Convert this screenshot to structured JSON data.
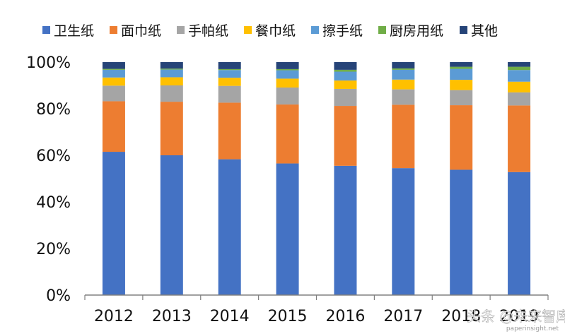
{
  "chart_data": {
    "type": "bar",
    "stacked": true,
    "normalized": true,
    "categories": [
      "2012",
      "2013",
      "2014",
      "2015",
      "2016",
      "2017",
      "2018",
      "2019"
    ],
    "series": [
      {
        "name": "卫生纸",
        "color": "#4472C4",
        "values": [
          61.5,
          60.0,
          58.3,
          56.5,
          55.5,
          54.5,
          53.8,
          52.8
        ]
      },
      {
        "name": "面巾纸",
        "color": "#ED7D31",
        "values": [
          21.7,
          23.0,
          24.3,
          25.3,
          25.7,
          27.2,
          27.7,
          28.6
        ]
      },
      {
        "name": "手帕纸",
        "color": "#A5A5A5",
        "values": [
          6.7,
          7.0,
          7.2,
          7.3,
          7.3,
          6.6,
          6.5,
          5.6
        ]
      },
      {
        "name": "餐巾纸",
        "color": "#FFC000",
        "values": [
          3.5,
          3.5,
          3.5,
          3.8,
          3.6,
          4.2,
          4.4,
          4.6
        ]
      },
      {
        "name": "擦手纸",
        "color": "#5B9BD5",
        "values": [
          3.3,
          3.3,
          3.3,
          3.6,
          3.8,
          4.2,
          4.7,
          5.0
        ]
      },
      {
        "name": "厨房用纸",
        "color": "#70AD47",
        "values": [
          0.4,
          0.4,
          0.4,
          0.5,
          0.8,
          0.6,
          0.9,
          1.4
        ]
      },
      {
        "name": "其他",
        "color": "#264478",
        "values": [
          2.9,
          2.8,
          3.0,
          3.0,
          3.3,
          2.7,
          2.0,
          2.0
        ]
      }
    ],
    "y_ticks": [
      "0%",
      "20%",
      "40%",
      "60%",
      "80%",
      "100%"
    ],
    "ylim": [
      0,
      100
    ],
    "y_unit": "%",
    "grid": false,
    "legend_position": "top",
    "watermark_text": "头条 @未来智库",
    "source_text": "paperinsight.net"
  }
}
